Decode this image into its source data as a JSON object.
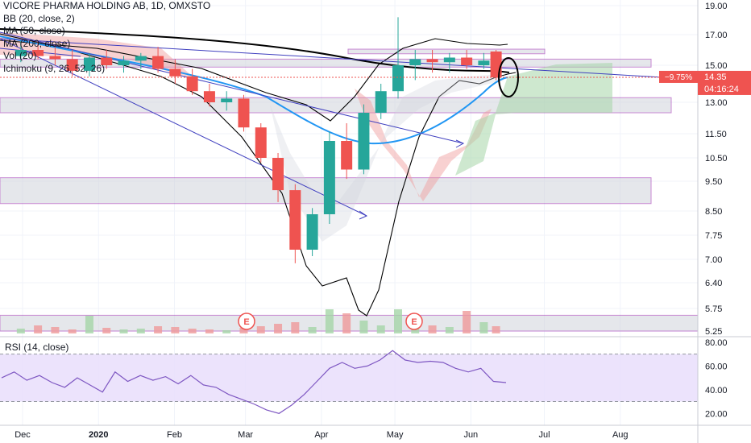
{
  "header": {
    "title": "VICORE PHARMA HOLDING AB, 1D, OMXSTO",
    "indicators": [
      "BB (20, close, 2)",
      "MA (50, close)",
      "MA (200, close)",
      "Vol (20)",
      "Ichimoku (9, 26, 52, 26)"
    ],
    "rsi_label": "RSI (14, close)"
  },
  "price_tag": {
    "change": "−9.75%",
    "price": "14.35",
    "countdown": "04:16:24"
  },
  "colors": {
    "up": "#26a69a",
    "down": "#ef5350",
    "price_tag": "#ef5350",
    "ma50": "#2196f3",
    "ma200": "#000000",
    "bb": "#000000",
    "trend": "#3f3fbf",
    "zone_border": "#9c27b0",
    "rsi_line": "#7e57c2"
  },
  "events": [
    "E",
    "E"
  ],
  "chart_data": [
    {
      "type": "candlestick",
      "title": "VICORE PHARMA HOLDING AB, 1D, OMXSTO",
      "y_ticks": [
        "19.00",
        "17.00",
        "15.00",
        "13.00",
        "11.50",
        "10.50",
        "9.50",
        "8.50",
        "7.75",
        "7.00",
        "6.40",
        "5.75",
        "5.25"
      ],
      "x_ticks": [
        "Dec",
        "2020",
        "Feb",
        "Mar",
        "Apr",
        "May",
        "Jun",
        "Jul",
        "Aug"
      ],
      "last_price": 14.35,
      "ohlc_weekly": [
        {
          "x": "2019-11-27",
          "o": 15.6,
          "h": 16.6,
          "l": 15.2,
          "c": 16.0
        },
        {
          "x": "2019-12-04",
          "o": 16.0,
          "h": 16.6,
          "l": 15.4,
          "c": 15.6
        },
        {
          "x": "2019-12-11",
          "o": 15.6,
          "h": 16.2,
          "l": 15.0,
          "c": 15.4
        },
        {
          "x": "2019-12-18",
          "o": 15.4,
          "h": 16.0,
          "l": 14.4,
          "c": 14.7
        },
        {
          "x": "2019-12-25",
          "o": 14.7,
          "h": 15.8,
          "l": 14.4,
          "c": 15.5
        },
        {
          "x": "2020-01-01",
          "o": 15.5,
          "h": 16.0,
          "l": 14.8,
          "c": 15.0
        },
        {
          "x": "2020-01-08",
          "o": 15.0,
          "h": 15.6,
          "l": 14.6,
          "c": 15.3
        },
        {
          "x": "2020-01-15",
          "o": 15.3,
          "h": 15.8,
          "l": 14.8,
          "c": 15.6
        },
        {
          "x": "2020-01-22",
          "o": 15.6,
          "h": 16.2,
          "l": 14.6,
          "c": 14.8
        },
        {
          "x": "2020-01-29",
          "o": 14.8,
          "h": 15.4,
          "l": 14.0,
          "c": 14.4
        },
        {
          "x": "2020-02-05",
          "o": 14.4,
          "h": 14.8,
          "l": 13.4,
          "c": 13.6
        },
        {
          "x": "2020-02-12",
          "o": 13.6,
          "h": 14.0,
          "l": 12.8,
          "c": 13.0
        },
        {
          "x": "2020-02-19",
          "o": 13.0,
          "h": 13.6,
          "l": 12.6,
          "c": 13.2
        },
        {
          "x": "2020-02-26",
          "o": 13.2,
          "h": 13.4,
          "l": 11.6,
          "c": 11.8
        },
        {
          "x": "2020-03-04",
          "o": 11.8,
          "h": 12.0,
          "l": 10.3,
          "c": 10.5
        },
        {
          "x": "2020-03-11",
          "o": 10.5,
          "h": 10.7,
          "l": 8.8,
          "c": 9.2
        },
        {
          "x": "2020-03-18",
          "o": 9.2,
          "h": 9.4,
          "l": 6.9,
          "c": 7.3
        },
        {
          "x": "2020-03-25",
          "o": 7.3,
          "h": 8.6,
          "l": 7.1,
          "c": 8.4
        },
        {
          "x": "2020-04-01",
          "o": 8.4,
          "h": 11.6,
          "l": 8.1,
          "c": 11.2
        },
        {
          "x": "2020-04-08",
          "o": 11.2,
          "h": 12.0,
          "l": 9.6,
          "c": 10.0
        },
        {
          "x": "2020-04-15",
          "o": 10.0,
          "h": 12.9,
          "l": 9.8,
          "c": 12.5
        },
        {
          "x": "2020-04-22",
          "o": 12.5,
          "h": 14.0,
          "l": 12.2,
          "c": 13.6
        },
        {
          "x": "2020-04-29",
          "o": 13.6,
          "h": 18.2,
          "l": 13.2,
          "c": 15.0
        },
        {
          "x": "2020-05-06",
          "o": 15.0,
          "h": 16.0,
          "l": 14.2,
          "c": 15.4
        },
        {
          "x": "2020-05-13",
          "o": 15.4,
          "h": 16.0,
          "l": 14.6,
          "c": 15.2
        },
        {
          "x": "2020-05-20",
          "o": 15.2,
          "h": 15.8,
          "l": 14.6,
          "c": 15.5
        },
        {
          "x": "2020-05-27",
          "o": 15.5,
          "h": 16.0,
          "l": 14.8,
          "c": 15.0
        },
        {
          "x": "2020-06-03",
          "o": 15.0,
          "h": 15.8,
          "l": 14.8,
          "c": 15.3
        },
        {
          "x": "2020-06-08",
          "o": 15.9,
          "h": 16.0,
          "l": 14.2,
          "c": 14.35
        }
      ],
      "support_resistance_zones": [
        [
          15.75,
          16.05
        ],
        [
          14.9,
          15.4
        ],
        [
          12.5,
          13.25
        ],
        [
          8.75,
          9.65
        ],
        [
          5.25,
          5.6
        ]
      ],
      "series": [
        {
          "name": "MA (50, close)",
          "values": [
            16.9,
            16.0,
            15.0,
            13.5,
            12.2,
            11.4,
            11.2,
            11.5,
            12.4,
            13.5
          ]
        },
        {
          "name": "MA (200, close)",
          "values": [
            17.2,
            16.9,
            16.6,
            16.3,
            15.9,
            15.5,
            15.1,
            14.9
          ]
        }
      ]
    },
    {
      "type": "line",
      "title": "RSI (14, close)",
      "y_ticks": [
        "80.00",
        "60.00",
        "40.00",
        "20.00"
      ],
      "ylim": [
        10,
        82
      ],
      "band": [
        30,
        70
      ],
      "values": [
        50,
        55,
        48,
        52,
        46,
        42,
        50,
        44,
        38,
        55,
        47,
        52,
        48,
        51,
        45,
        52,
        44,
        42,
        36,
        32,
        28,
        23,
        20,
        27,
        36,
        47,
        58,
        63,
        58,
        60,
        65,
        73,
        65,
        63,
        64,
        63,
        58,
        55,
        58,
        47,
        46
      ]
    }
  ]
}
